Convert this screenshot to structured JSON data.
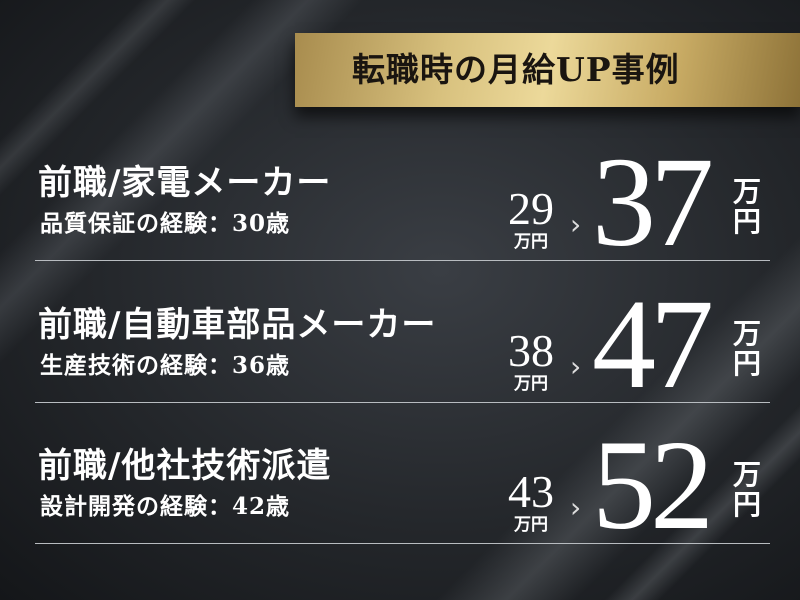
{
  "banner": {
    "title": "転職時の月給UP事例"
  },
  "cases": [
    {
      "title": "前職/家電メーカー",
      "detail": "品質保証の経験：30歳",
      "before": "29",
      "before_unit": "万円",
      "arrow": "›",
      "after": "37",
      "after_unit_1": "万",
      "after_unit_2": "円"
    },
    {
      "title": "前職/自動車部品メーカー",
      "detail": "生産技術の経験：36歳",
      "before": "38",
      "before_unit": "万円",
      "arrow": "›",
      "after": "47",
      "after_unit_1": "万",
      "after_unit_2": "円"
    },
    {
      "title": "前職/他社技術派遣",
      "detail": "設計開発の経験：42歳",
      "before": "43",
      "before_unit": "万円",
      "arrow": "›",
      "after": "52",
      "after_unit_1": "万",
      "after_unit_2": "円"
    }
  ],
  "colors": {
    "gold": "#d8c17e",
    "background": "#24272b",
    "text": "#ffffff"
  }
}
